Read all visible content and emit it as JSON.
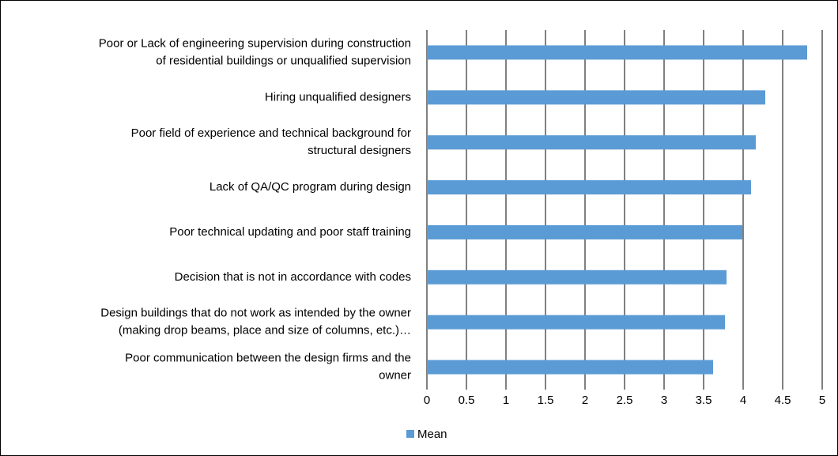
{
  "chart_data": {
    "type": "bar",
    "orientation": "horizontal",
    "categories": [
      [
        "Poor or Lack of engineering supervision during construction",
        "of residential buildings or unqualified supervision"
      ],
      [
        "Hiring unqualified designers"
      ],
      [
        "Poor field of experience and technical background for",
        "structural designers"
      ],
      [
        "Lack of QA/QC program during design"
      ],
      [
        "Poor technical updating and poor staff training"
      ],
      [
        "Decision that is not in accordance with codes"
      ],
      [
        "Design buildings that do not work as intended by the owner",
        "(making drop beams, place and size of columns, etc.)…"
      ],
      [
        "Poor communication between the design firms and the",
        "owner"
      ]
    ],
    "series": [
      {
        "name": "Mean",
        "color": "#5b9bd5",
        "values": [
          4.81,
          4.28,
          4.16,
          4.1,
          3.99,
          3.79,
          3.77,
          3.62
        ]
      }
    ],
    "xlim": [
      0,
      5
    ],
    "xticks": [
      0,
      0.5,
      1,
      1.5,
      2,
      2.5,
      3,
      3.5,
      4,
      4.5,
      5
    ],
    "grid": true,
    "legend": "bottom"
  }
}
